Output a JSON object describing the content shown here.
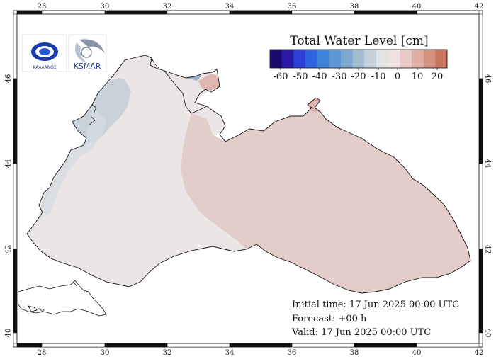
{
  "legend": {
    "title": "Total Water Level [cm]",
    "labels": [
      "-60",
      "-50",
      "-40",
      "-30",
      "-20",
      "-10",
      "0",
      "10",
      "20"
    ],
    "colors": [
      "#1a0a6b",
      "#2a1aa8",
      "#2c3fd6",
      "#2f63e0",
      "#3f82dc",
      "#5e98d4",
      "#7fa8cf",
      "#a2bccf",
      "#c6d0da",
      "#e3e3e6",
      "#efe2e0",
      "#e9c9c4",
      "#e0aea5",
      "#d5917f",
      "#c9745f"
    ]
  },
  "axes": {
    "lon_labels": [
      "28",
      "30",
      "32",
      "34",
      "36",
      "38",
      "40",
      "42"
    ],
    "lat_labels": [
      "40",
      "42",
      "44",
      "46"
    ]
  },
  "info": {
    "initial": "Initial time: 17 Jun 2025 00:00 UTC",
    "forecast": "Forecast: +00 h",
    "valid": "Valid: 17 Jun 2025 00:00 UTC"
  },
  "logos": {
    "left": "logo-left",
    "right": "logo-ksmar",
    "left_text": "ΚΑΛΛΑΝΟΣ",
    "right_text": "KSMAR"
  },
  "colors": {
    "sea_neutral": "#ebe6e5",
    "sea_positive": "#e3cdca",
    "sea_negative": "#c7d0da",
    "coast": "#111111"
  }
}
